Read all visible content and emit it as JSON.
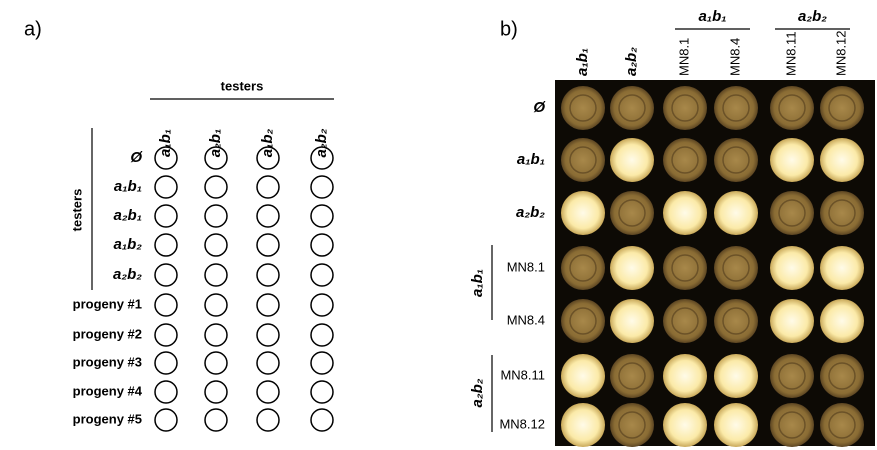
{
  "panel_a": {
    "label": "a)",
    "column_header": "testers",
    "row_group_label": "testers",
    "columns": [
      "a₁b₁",
      "a₂b₁",
      "a₁b₂",
      "a₂b₂"
    ],
    "tester_rows": [
      "Ø",
      "a₁b₁",
      "a₂b₁",
      "a₁b₂",
      "a₂b₂"
    ],
    "progeny_rows": [
      "progeny #1",
      "progeny #2",
      "progeny #3",
      "progeny #4",
      "progeny #5"
    ]
  },
  "panel_b": {
    "label": "b)",
    "columns": [
      "a₁b₁",
      "a₂b₂",
      "MN8.1",
      "MN8.4",
      "MN8.11",
      "MN8.12"
    ],
    "column_groups": [
      "a₁b₁",
      "a₂b₂"
    ],
    "rows": [
      "Ø",
      "a₁b₁",
      "a₂b₂",
      "MN8.1",
      "MN8.4",
      "MN8.11",
      "MN8.12"
    ],
    "row_groups": [
      "a₁b₁",
      "a₂b₂"
    ]
  }
}
